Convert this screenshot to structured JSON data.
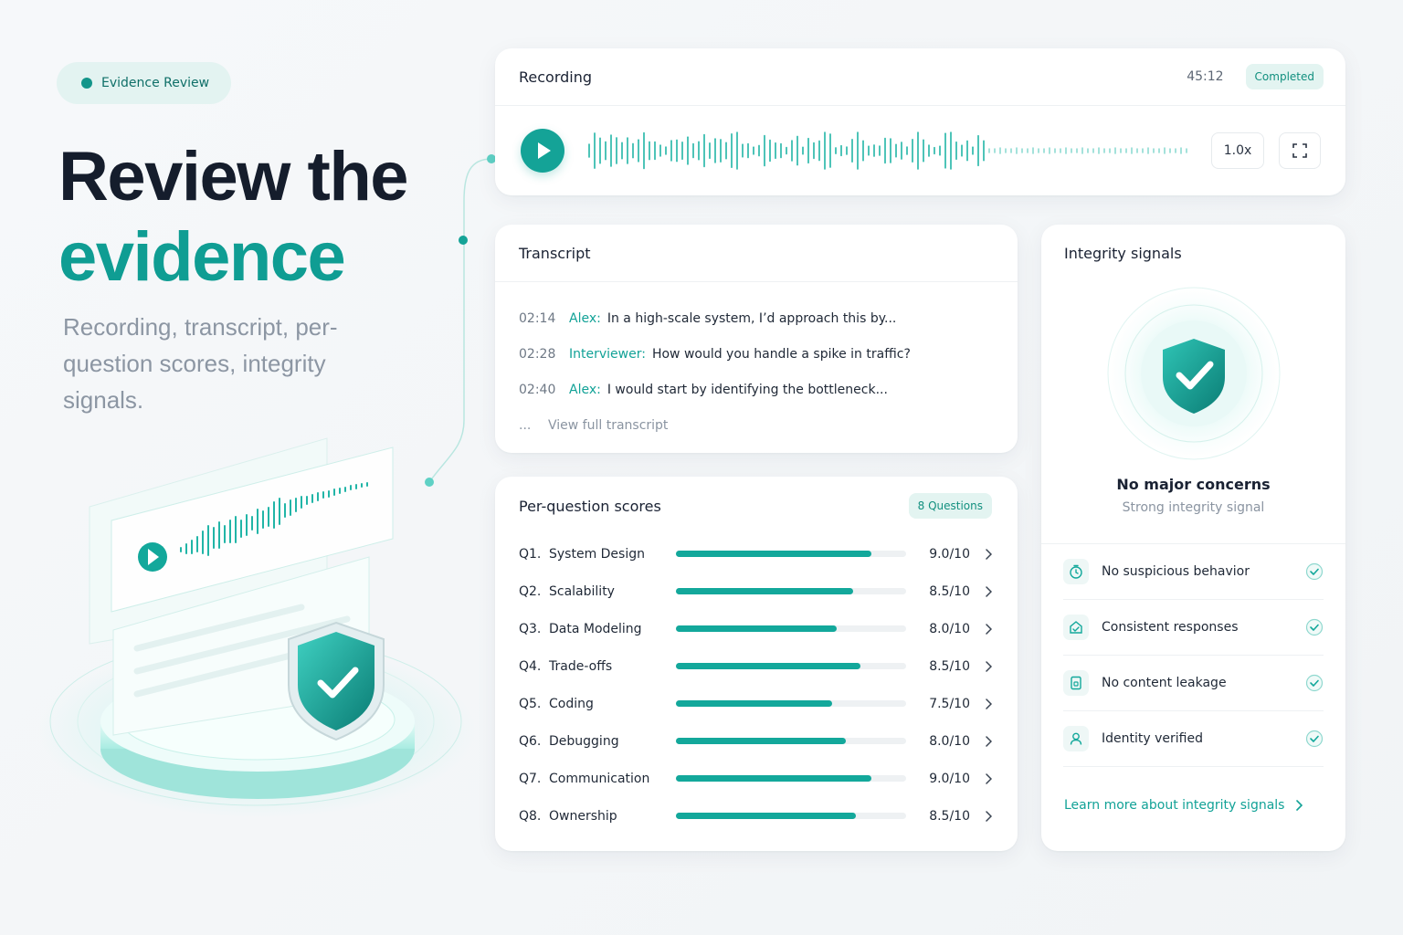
{
  "hero": {
    "pill_label": "Evidence Review",
    "headline_line1": "Review the",
    "headline_line2": "evidence",
    "subtitle": "Recording, transcript, per-question scores, integrity signals."
  },
  "recording": {
    "title": "Recording",
    "duration": "45:12",
    "status": "Completed",
    "speed": "1.0x"
  },
  "transcript": {
    "title": "Transcript",
    "lines": [
      {
        "time": "02:14",
        "speaker": "Alex:",
        "text": "In a high-scale system, I’d approach this by..."
      },
      {
        "time": "02:28",
        "speaker": "Interviewer:",
        "text": "How would you handle a spike in traffic?"
      },
      {
        "time": "02:40",
        "speaker": "Alex:",
        "text": "I would start by identifying the bottleneck..."
      }
    ],
    "ellipsis": "...",
    "view_full": "View full transcript"
  },
  "scores": {
    "title": "Per-question scores",
    "count_badge": "8 Questions",
    "items": [
      {
        "num": "Q1.",
        "name": "System Design",
        "score": "9.0/10",
        "fraction": 0.85
      },
      {
        "num": "Q2.",
        "name": "Scalability",
        "score": "8.5/10",
        "fraction": 0.77
      },
      {
        "num": "Q3.",
        "name": "Data Modeling",
        "score": "8.0/10",
        "fraction": 0.7
      },
      {
        "num": "Q4.",
        "name": "Trade-offs",
        "score": "8.5/10",
        "fraction": 0.8
      },
      {
        "num": "Q5.",
        "name": "Coding",
        "score": "7.5/10",
        "fraction": 0.68
      },
      {
        "num": "Q6.",
        "name": "Debugging",
        "score": "8.0/10",
        "fraction": 0.74
      },
      {
        "num": "Q7.",
        "name": "Communication",
        "score": "9.0/10",
        "fraction": 0.85
      },
      {
        "num": "Q8.",
        "name": "Ownership",
        "score": "8.5/10",
        "fraction": 0.78
      }
    ]
  },
  "integrity": {
    "title": "Integrity signals",
    "status": "No major concerns",
    "substatus": "Strong integrity signal",
    "signals": [
      {
        "label": "No suspicious behavior",
        "icon": "timer-icon"
      },
      {
        "label": "Consistent responses",
        "icon": "consistency-icon"
      },
      {
        "label": "No content leakage",
        "icon": "document-lock-icon"
      },
      {
        "label": "Identity verified",
        "icon": "user-icon"
      }
    ],
    "learn_more": "Learn more about integrity signals"
  },
  "colors": {
    "accent": "#13a89b",
    "accent_dark": "#0f9d93",
    "heading": "#151d2c",
    "muted": "#8c96a3"
  }
}
